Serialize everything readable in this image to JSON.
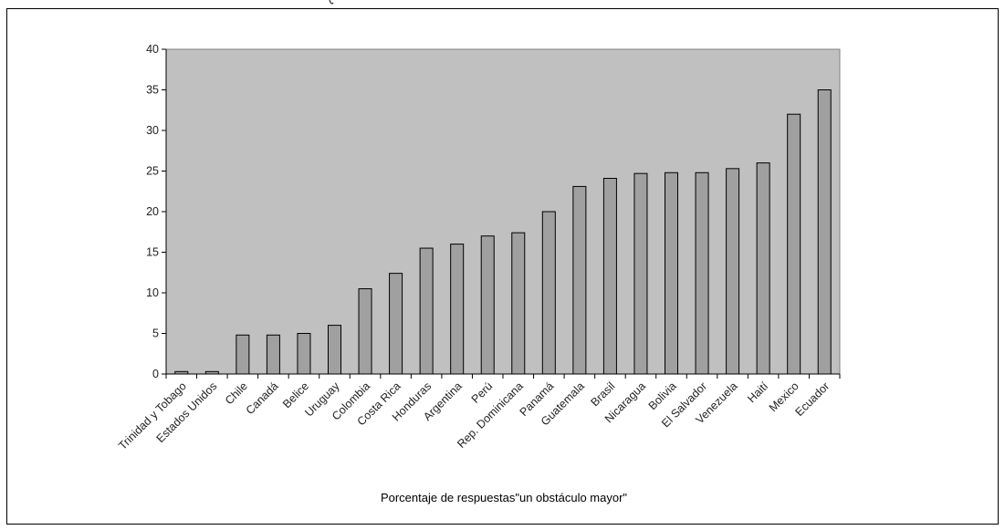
{
  "chart_data": {
    "type": "bar",
    "categories": [
      "Trinidad y Tobago",
      "Estados Unidos",
      "Chile",
      "Canadá",
      "Belice",
      "Uruguay",
      "Colombia",
      "Costa Rica",
      "Honduras",
      "Argentina",
      "Perú",
      "Rep. Dominicana",
      "Panamá",
      "Guatemala",
      "Brasil",
      "Nicaragua",
      "Bolivia",
      "El Salvador",
      "Venezuela",
      "Haití",
      "Mexico",
      "Ecuador"
    ],
    "values": [
      0.3,
      0.3,
      4.8,
      4.8,
      5.0,
      6.0,
      10.5,
      12.4,
      15.5,
      16.0,
      17.0,
      17.4,
      20.0,
      23.1,
      24.1,
      24.7,
      24.8,
      24.8,
      25.3,
      26.0,
      32.0,
      35.0
    ],
    "title": "",
    "xlabel": "Porcentaje de respuestas\"un obstáculo mayor\"",
    "ylabel": "",
    "ylim": [
      0,
      40
    ],
    "yticks": [
      "0",
      "5",
      "10",
      "15",
      "20",
      "25",
      "30",
      "35",
      "40"
    ],
    "grid": false,
    "legend": "none",
    "colors": {
      "plot_bg": "#c0c0c0",
      "bar_fill": "#a0a0a0",
      "bar_stroke": "#000000"
    }
  }
}
